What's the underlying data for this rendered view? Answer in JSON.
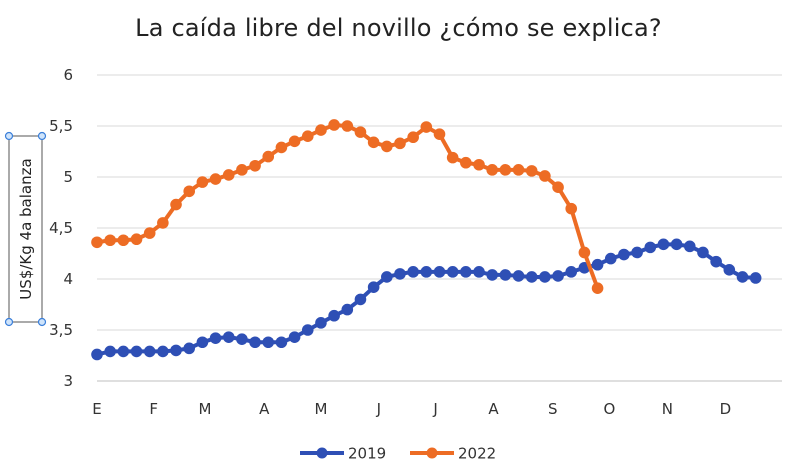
{
  "chart_data": {
    "type": "line",
    "title": "La caída libre del novillo ¿cómo se explica?",
    "ylabel": "US$/Kg 4a balanza",
    "xlabel": "",
    "ylim": [
      3,
      6
    ],
    "yticks": [
      3,
      3.5,
      4,
      4.5,
      5,
      5.5,
      6
    ],
    "ytick_labels": [
      "3",
      "3,5",
      "4",
      "4,5",
      "5",
      "5,5",
      "6"
    ],
    "grid": true,
    "legend": "bottom-center",
    "x_domain": [
      0,
      52
    ],
    "month_ticks": [
      {
        "label": "E",
        "x": 0
      },
      {
        "label": "F",
        "x": 4.3
      },
      {
        "label": "M",
        "x": 8.2
      },
      {
        "label": "A",
        "x": 12.7
      },
      {
        "label": "M",
        "x": 17
      },
      {
        "label": "J",
        "x": 21.4
      },
      {
        "label": "J",
        "x": 25.7
      },
      {
        "label": "A",
        "x": 30.1
      },
      {
        "label": "S",
        "x": 34.6
      },
      {
        "label": "O",
        "x": 38.9
      },
      {
        "label": "N",
        "x": 43.3
      },
      {
        "label": "D",
        "x": 47.7
      }
    ],
    "series": [
      {
        "name": "2019",
        "color": "#2e4fb5",
        "values": [
          3.26,
          3.29,
          3.29,
          3.29,
          3.29,
          3.29,
          3.3,
          3.32,
          3.38,
          3.42,
          3.43,
          3.41,
          3.38,
          3.38,
          3.38,
          3.43,
          3.5,
          3.57,
          3.64,
          3.7,
          3.8,
          3.92,
          4.02,
          4.05,
          4.07,
          4.07,
          4.07,
          4.07,
          4.07,
          4.07,
          4.04,
          4.04,
          4.03,
          4.02,
          4.02,
          4.03,
          4.07,
          4.11,
          4.14,
          4.2,
          4.24,
          4.26,
          4.31,
          4.34,
          4.34,
          4.32,
          4.26,
          4.17,
          4.09,
          4.02,
          4.01
        ]
      },
      {
        "name": "2022",
        "color": "#ed6c24",
        "values": [
          4.36,
          4.38,
          4.38,
          4.39,
          4.45,
          4.55,
          4.73,
          4.86,
          4.95,
          4.98,
          5.02,
          5.07,
          5.11,
          5.2,
          5.29,
          5.35,
          5.4,
          5.46,
          5.51,
          5.5,
          5.44,
          5.34,
          5.3,
          5.33,
          5.39,
          5.49,
          5.42,
          5.19,
          5.14,
          5.12,
          5.07,
          5.07,
          5.07,
          5.06,
          5.01,
          4.9,
          4.69,
          4.26,
          3.91
        ]
      }
    ]
  }
}
